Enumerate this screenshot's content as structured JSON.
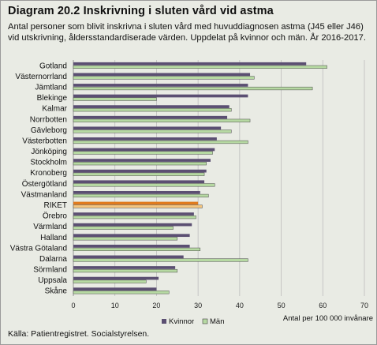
{
  "title": "Diagram 20.2 Inskrivning i sluten vård vid astma",
  "subtitle": "Antal personer som blivit inskrivna i sluten vård med huvuddiagnosen astma (J45 eller J46) vid utskrivning, åldersstandardiserade värden. Uppdelat på kvinnor och män. År 2016-2017.",
  "source": "Källa: Patientregistret. Socialstyrelsen.",
  "colors": {
    "kvinnor": "#5b4f72",
    "man": "#b6d9a2",
    "riket_kvinnor": "#e07b1e",
    "riket_man": "#f4c57e",
    "background": "#e9ebe4"
  },
  "chart_data": {
    "type": "bar",
    "orientation": "horizontal",
    "categories": [
      "Gotland",
      "Västernorrland",
      "Jämtland",
      "Blekinge",
      "Kalmar",
      "Norrbotten",
      "Gävleborg",
      "Västerbotten",
      "Jönköping",
      "Stockholm",
      "Kronoberg",
      "Östergötland",
      "Västmanland",
      "RIKET",
      "Örebro",
      "Värmland",
      "Halland",
      "Västra Götaland",
      "Dalarna",
      "Sörmland",
      "Uppsala",
      "Skåne"
    ],
    "series": [
      {
        "name": "Kvinnor",
        "values": [
          56,
          42.5,
          42,
          42,
          37.5,
          37,
          35.5,
          34.5,
          34,
          33,
          32,
          31.5,
          30.5,
          30,
          29,
          28.5,
          28,
          28,
          26.5,
          24.5,
          20.5,
          20
        ]
      },
      {
        "name": "Män",
        "values": [
          61,
          43.5,
          57.5,
          20,
          38,
          42.5,
          38,
          42,
          33.5,
          32,
          31.5,
          34,
          32.5,
          31,
          29.5,
          24,
          25,
          30.5,
          42,
          25,
          17.5,
          23
        ]
      }
    ],
    "xlim": [
      0,
      70
    ],
    "xticks": [
      0,
      10,
      20,
      30,
      40,
      50,
      60,
      70
    ],
    "xlabel": "Antal per 100 000 invånare",
    "ylabel": "",
    "highlight_category": "RIKET",
    "grid": true,
    "legend": {
      "position": "bottom",
      "entries": [
        "Kvinnor",
        "Män"
      ]
    }
  }
}
